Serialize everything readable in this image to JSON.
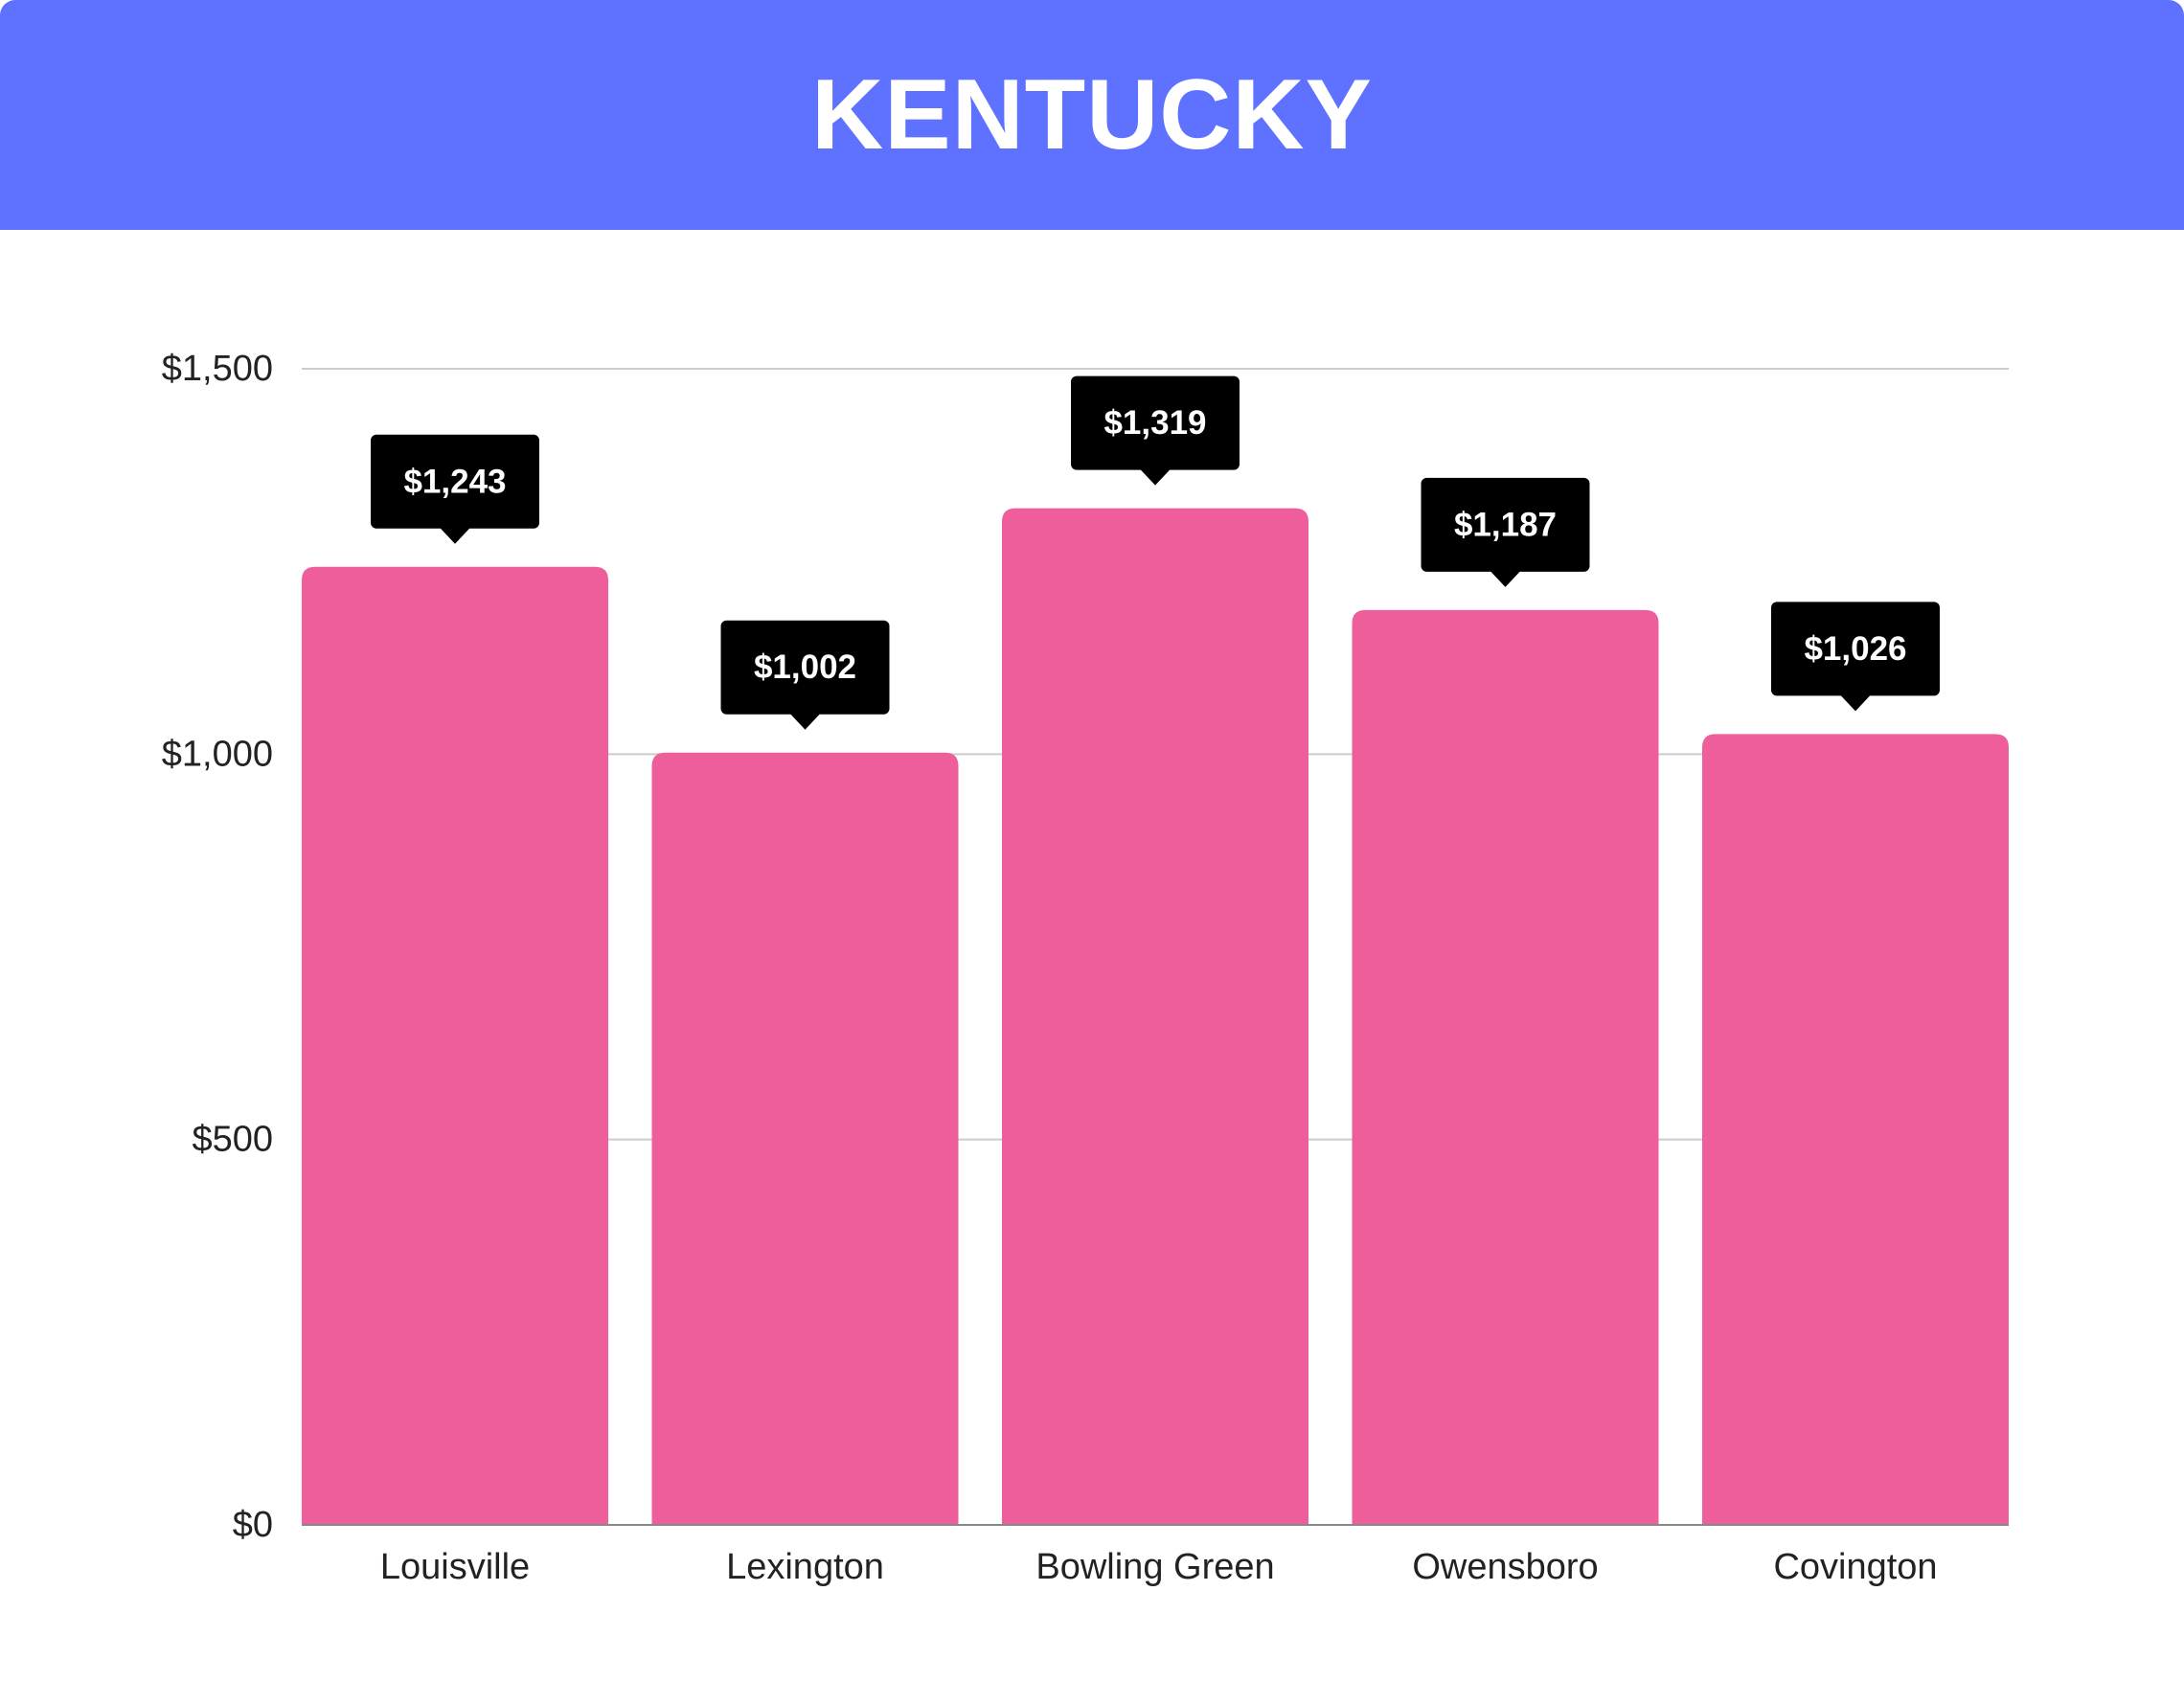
{
  "header": {
    "title": "KENTUCKY"
  },
  "colors": {
    "header_bg": "#5e72ff",
    "bar": "#ee5e9b",
    "label_bg": "#000000",
    "grid": "#cccccc",
    "axis": "#888888"
  },
  "chart_data": {
    "type": "bar",
    "title": "KENTUCKY",
    "xlabel": "",
    "ylabel": "",
    "categories": [
      "Louisville",
      "Lexington",
      "Bowling Green",
      "Owensboro",
      "Covington"
    ],
    "values": [
      1243,
      1002,
      1319,
      1187,
      1026
    ],
    "data_labels": [
      "$1,243",
      "$1,002",
      "$1,319",
      "$1,187",
      "$1,026"
    ],
    "ylim": [
      0,
      1500
    ],
    "yticks": [
      0,
      500,
      1000,
      1500
    ],
    "ytick_labels": [
      "$0",
      "$500",
      "$1,000",
      "$1,500"
    ],
    "grid": true,
    "legend": "none"
  }
}
